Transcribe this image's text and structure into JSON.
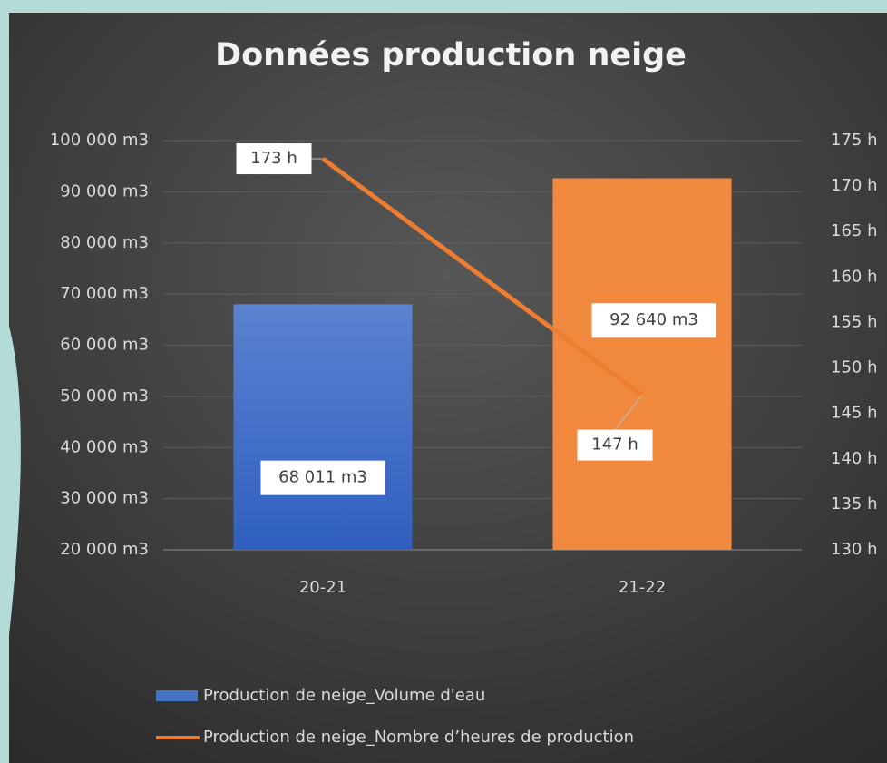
{
  "chart_data": {
    "type": "bar_line",
    "title": "Données production neige",
    "categories": [
      "20-21",
      "21-22"
    ],
    "series": [
      {
        "name": "Production de neige_Volume d'eau",
        "type": "bar",
        "color": "#4472c4",
        "point_colors": [
          "#4472c4",
          "#f0883e"
        ],
        "values": [
          68011,
          92640
        ],
        "value_labels": [
          "68 011 m3",
          "92 640 m3"
        ]
      },
      {
        "name": "Production de neige_Nombre d’heures de production",
        "type": "line",
        "color": "#ed7d31",
        "axis": "y2",
        "values": [
          173,
          147
        ],
        "value_labels": [
          "173 h",
          "147 h"
        ]
      }
    ],
    "ylim": [
      20000,
      100000
    ],
    "yticks": [
      {
        "value": 20000,
        "label": "20 000 m3"
      },
      {
        "value": 30000,
        "label": "30 000 m3"
      },
      {
        "value": 40000,
        "label": "40 000 m3"
      },
      {
        "value": 50000,
        "label": "50 000 m3"
      },
      {
        "value": 60000,
        "label": "60 000 m3"
      },
      {
        "value": 70000,
        "label": "70 000 m3"
      },
      {
        "value": 80000,
        "label": "80 000 m3"
      },
      {
        "value": 90000,
        "label": "90 000 m3"
      },
      {
        "value": 100000,
        "label": "100 000 m3"
      }
    ],
    "y2lim": [
      130,
      175
    ],
    "y2ticks": [
      {
        "value": 130,
        "label": "130 h"
      },
      {
        "value": 135,
        "label": "135 h"
      },
      {
        "value": 140,
        "label": "140 h"
      },
      {
        "value": 145,
        "label": "145 h"
      },
      {
        "value": 150,
        "label": "150 h"
      },
      {
        "value": 155,
        "label": "155 h"
      },
      {
        "value": 160,
        "label": "160 h"
      },
      {
        "value": 165,
        "label": "165 h"
      },
      {
        "value": 170,
        "label": "170 h"
      },
      {
        "value": 175,
        "label": "175 h"
      }
    ],
    "grid": true,
    "legend": "bottom"
  }
}
